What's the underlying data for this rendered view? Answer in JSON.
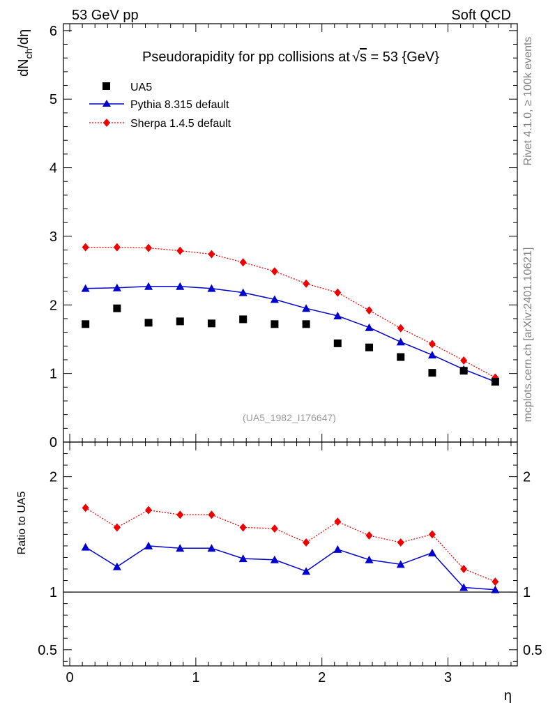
{
  "header": {
    "left": "53 GeV pp",
    "right": "Soft QCD"
  },
  "side": {
    "rivet": "Rivet 4.1.0, ≥ 100k events",
    "mcplots": "mcplots.cern.ch [arXiv:2401.10621]"
  },
  "colors": {
    "data": "#000000",
    "pythia": "#0000cc",
    "sherpa": "#ee0000"
  },
  "chart_data": [
    {
      "type": "scatter",
      "title": "Pseudorapidity for pp collisions at",
      "title_sqrt": "s",
      "title_tail": " = 53 {GeV}",
      "ylabel_main": "dN",
      "ylabel_sub": "ch",
      "ylabel_tail": "/dη",
      "watermark": "(UA5_1982_I176647)",
      "xlim": [
        -0.05,
        3.55
      ],
      "ylim": [
        0,
        6.1
      ],
      "yticks": [
        0,
        1,
        2,
        3,
        4,
        5,
        6
      ],
      "ytick_labels": [
        "0",
        "1",
        "2",
        "3",
        "4",
        "5",
        "6"
      ],
      "x": [
        0.125,
        0.375,
        0.625,
        0.875,
        1.125,
        1.375,
        1.625,
        1.875,
        2.125,
        2.375,
        2.625,
        2.875,
        3.125,
        3.375
      ],
      "series": [
        {
          "name": "UA5",
          "style": "square",
          "values": [
            1.72,
            1.95,
            1.74,
            1.76,
            1.73,
            1.79,
            1.72,
            1.72,
            1.44,
            1.38,
            1.24,
            1.01,
            1.04,
            0.88
          ]
        },
        {
          "name": "Pythia 8.315 default",
          "style": "triangle-solid",
          "values": [
            2.24,
            2.25,
            2.27,
            2.27,
            2.24,
            2.18,
            2.08,
            1.95,
            1.84,
            1.67,
            1.46,
            1.27,
            1.06,
            0.88
          ]
        },
        {
          "name": "Sherpa 1.4.5 default",
          "style": "diamond-dotted",
          "values": [
            2.84,
            2.84,
            2.83,
            2.79,
            2.74,
            2.62,
            2.49,
            2.31,
            2.18,
            1.92,
            1.66,
            1.43,
            1.19,
            0.94
          ]
        }
      ]
    },
    {
      "type": "line",
      "ylabel": "Ratio to UA5",
      "xlabel": "η",
      "xlim": [
        -0.05,
        3.55
      ],
      "ylim": [
        0.36,
        2.3
      ],
      "xticks": [
        0,
        1,
        2,
        3
      ],
      "xtick_labels": [
        "0",
        "1",
        "2",
        "3"
      ],
      "yticks": [
        0.5,
        1,
        2
      ],
      "ytick_labels": [
        "0.5",
        "1",
        "2"
      ],
      "reference_line": 1,
      "x": [
        0.125,
        0.375,
        0.625,
        0.875,
        1.125,
        1.375,
        1.625,
        1.875,
        2.125,
        2.375,
        2.625,
        2.875,
        3.125,
        3.375
      ],
      "series": [
        {
          "name": "Pythia 8.315 default",
          "values": [
            1.39,
            1.22,
            1.4,
            1.38,
            1.38,
            1.29,
            1.28,
            1.18,
            1.37,
            1.28,
            1.24,
            1.34,
            1.04,
            1.02
          ]
        },
        {
          "name": "Sherpa 1.4.5 default",
          "values": [
            1.73,
            1.56,
            1.71,
            1.67,
            1.67,
            1.56,
            1.55,
            1.43,
            1.61,
            1.49,
            1.43,
            1.5,
            1.2,
            1.09
          ]
        }
      ]
    }
  ]
}
